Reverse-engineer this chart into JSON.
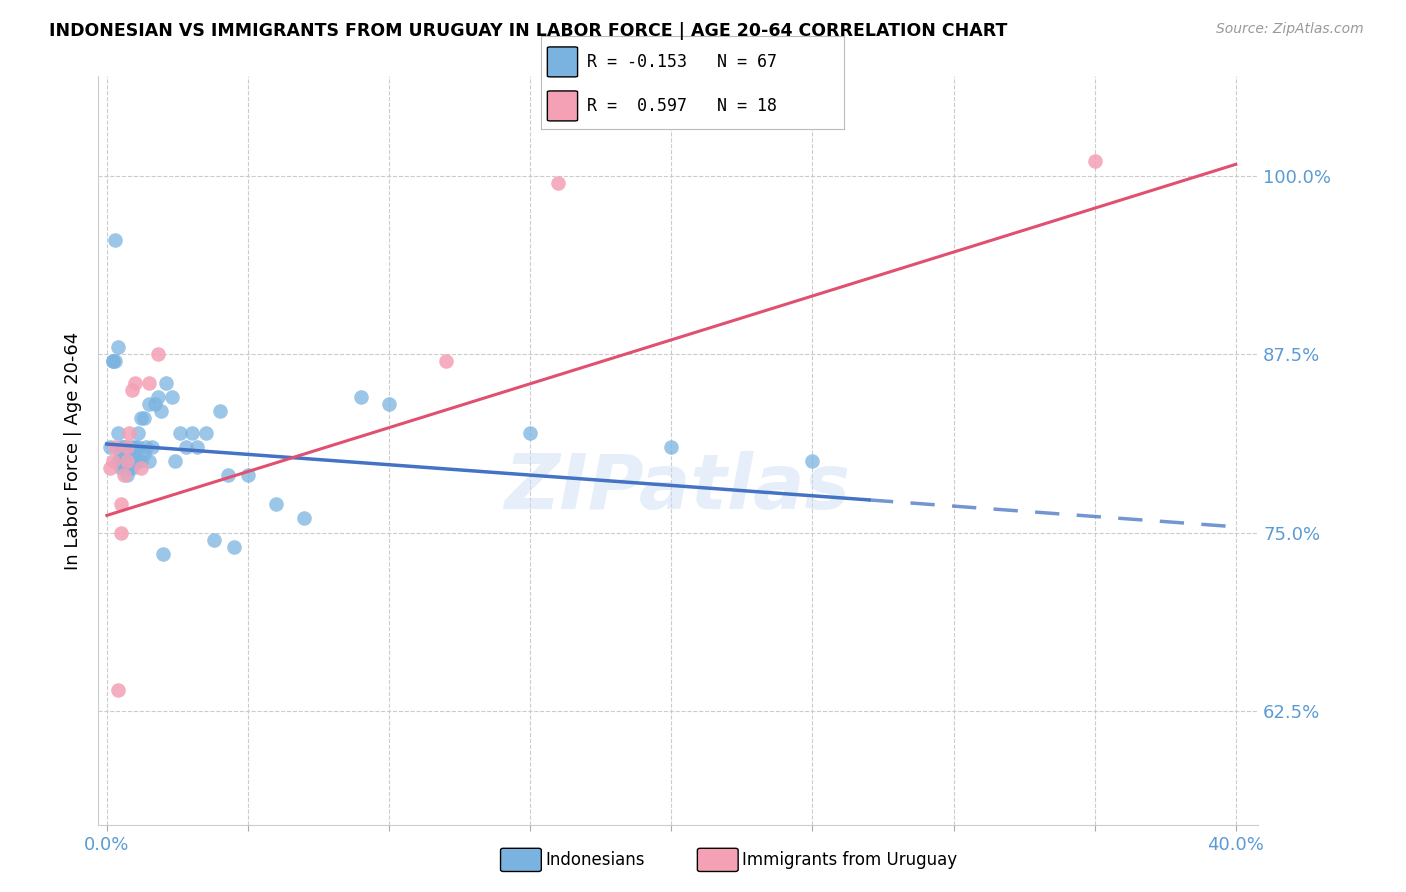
{
  "title": "INDONESIAN VS IMMIGRANTS FROM URUGUAY IN LABOR FORCE | AGE 20-64 CORRELATION CHART",
  "source": "Source: ZipAtlas.com",
  "ylabel": "In Labor Force | Age 20-64",
  "xlim": [
    -0.003,
    0.408
  ],
  "ylim": [
    0.545,
    1.07
  ],
  "xtick_positions": [
    0.0,
    0.05,
    0.1,
    0.15,
    0.2,
    0.25,
    0.3,
    0.35,
    0.4
  ],
  "xticklabels": [
    "0.0%",
    "",
    "",
    "",
    "",
    "",
    "",
    "",
    "40.0%"
  ],
  "ytick_positions": [
    0.625,
    0.75,
    0.875,
    1.0
  ],
  "yticklabels": [
    "62.5%",
    "75.0%",
    "87.5%",
    "100.0%"
  ],
  "tick_color": "#5b9bd5",
  "blue_scatter_color": "#7ab3e0",
  "pink_scatter_color": "#f4a0b5",
  "blue_line_color": "#4472c4",
  "pink_line_color": "#e05070",
  "watermark": "ZIPatlas",
  "ind_x": [
    0.001,
    0.002,
    0.002,
    0.003,
    0.003,
    0.004,
    0.004,
    0.004,
    0.005,
    0.005,
    0.005,
    0.005,
    0.006,
    0.006,
    0.006,
    0.006,
    0.007,
    0.007,
    0.007,
    0.007,
    0.007,
    0.008,
    0.008,
    0.008,
    0.008,
    0.009,
    0.009,
    0.009,
    0.009,
    0.01,
    0.01,
    0.01,
    0.011,
    0.011,
    0.011,
    0.012,
    0.012,
    0.013,
    0.013,
    0.014,
    0.015,
    0.015,
    0.016,
    0.017,
    0.018,
    0.019,
    0.021,
    0.023,
    0.024,
    0.026,
    0.028,
    0.03,
    0.032,
    0.035,
    0.04,
    0.043,
    0.05,
    0.06,
    0.07,
    0.09,
    0.15,
    0.2,
    0.25,
    0.02,
    0.038,
    0.045,
    0.1
  ],
  "ind_y": [
    0.81,
    0.87,
    0.87,
    0.955,
    0.87,
    0.88,
    0.82,
    0.8,
    0.81,
    0.805,
    0.8,
    0.795,
    0.81,
    0.81,
    0.8,
    0.795,
    0.81,
    0.805,
    0.8,
    0.795,
    0.79,
    0.805,
    0.8,
    0.805,
    0.795,
    0.81,
    0.805,
    0.8,
    0.795,
    0.81,
    0.805,
    0.8,
    0.82,
    0.81,
    0.8,
    0.83,
    0.8,
    0.83,
    0.805,
    0.81,
    0.84,
    0.8,
    0.81,
    0.84,
    0.845,
    0.835,
    0.855,
    0.845,
    0.8,
    0.82,
    0.81,
    0.82,
    0.81,
    0.82,
    0.835,
    0.79,
    0.79,
    0.77,
    0.76,
    0.845,
    0.82,
    0.81,
    0.8,
    0.735,
    0.745,
    0.74,
    0.84
  ],
  "uru_x": [
    0.001,
    0.002,
    0.003,
    0.004,
    0.005,
    0.005,
    0.006,
    0.007,
    0.007,
    0.008,
    0.009,
    0.01,
    0.012,
    0.015,
    0.018,
    0.12,
    0.16,
    0.35
  ],
  "uru_y": [
    0.795,
    0.8,
    0.81,
    0.64,
    0.75,
    0.77,
    0.79,
    0.8,
    0.81,
    0.82,
    0.85,
    0.855,
    0.795,
    0.855,
    0.875,
    0.87,
    0.995,
    1.01
  ],
  "ind_line_x0": 0.0,
  "ind_line_x_solid_end": 0.27,
  "ind_line_x1": 0.4,
  "ind_line_y0": 0.812,
  "ind_line_y1": 0.754,
  "uru_line_x0": 0.0,
  "uru_line_x1": 0.4,
  "uru_line_y0": 0.762,
  "uru_line_y1": 1.008
}
